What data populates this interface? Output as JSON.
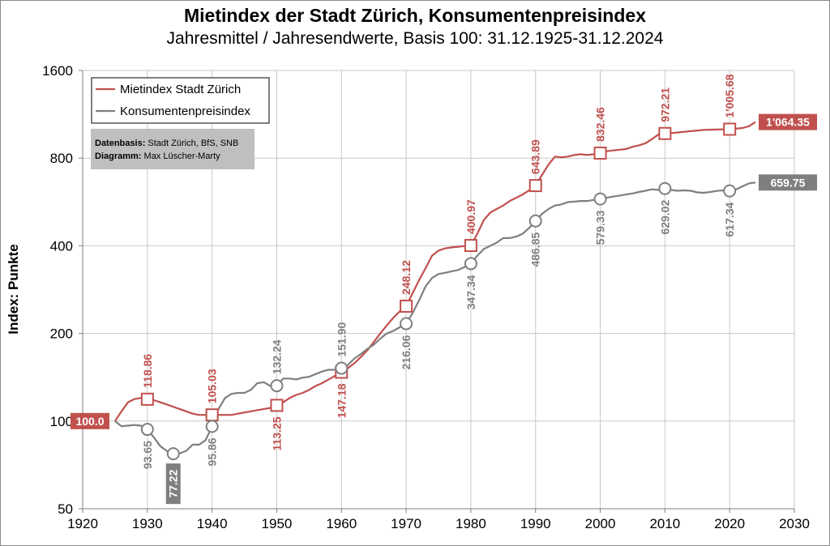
{
  "page": {
    "title": "Mietindex der Stadt Zürich, Konsumentenpreisindex",
    "subtitle": "Jahresmittel / Jahresendwerte, Basis 100: 31.12.1925-31.12.2024"
  },
  "chart_data": {
    "type": "line",
    "ylabel": "Index: Punkte",
    "yscale": "log2",
    "ylim": [
      50,
      1600
    ],
    "xlim": [
      1920,
      2030
    ],
    "y_ticks": [
      "50",
      "100",
      "200",
      "400",
      "800",
      "1600"
    ],
    "x_ticks": [
      "1920",
      "1930",
      "1940",
      "1950",
      "1960",
      "1970",
      "1980",
      "1990",
      "2000",
      "2010",
      "2020",
      "2030"
    ],
    "grid": true,
    "legend_position": "top-left",
    "source_box": {
      "line1_bold": "Datenbasis:",
      "line1_text": " Stadt Zürich, BfS, SNB",
      "line2_bold": "Diagramm:",
      "line2_text": " Max Lüscher-Marty"
    },
    "series": [
      {
        "name": "Mietindex Stadt Zürich",
        "color": "#c0504d",
        "marker": "square",
        "points": [
          [
            1925,
            100
          ],
          [
            1926,
            108
          ],
          [
            1927,
            116
          ],
          [
            1928,
            119
          ],
          [
            1929,
            120
          ],
          [
            1930,
            118.86
          ],
          [
            1931,
            118
          ],
          [
            1932,
            116
          ],
          [
            1933,
            114
          ],
          [
            1934,
            112
          ],
          [
            1935,
            110
          ],
          [
            1936,
            108
          ],
          [
            1937,
            106
          ],
          [
            1938,
            105
          ],
          [
            1939,
            105
          ],
          [
            1940,
            105.03
          ],
          [
            1941,
            105
          ],
          [
            1942,
            105
          ],
          [
            1943,
            105
          ],
          [
            1944,
            106
          ],
          [
            1945,
            107
          ],
          [
            1946,
            108
          ],
          [
            1947,
            109
          ],
          [
            1948,
            110
          ],
          [
            1949,
            111
          ],
          [
            1950,
            113.25
          ],
          [
            1951,
            116
          ],
          [
            1952,
            120
          ],
          [
            1953,
            123
          ],
          [
            1954,
            125
          ],
          [
            1955,
            128
          ],
          [
            1956,
            132
          ],
          [
            1957,
            135
          ],
          [
            1958,
            139
          ],
          [
            1959,
            143
          ],
          [
            1960,
            147.18
          ],
          [
            1961,
            152
          ],
          [
            1962,
            158
          ],
          [
            1963,
            166
          ],
          [
            1964,
            175
          ],
          [
            1965,
            187
          ],
          [
            1966,
            200
          ],
          [
            1967,
            213
          ],
          [
            1968,
            226
          ],
          [
            1969,
            238
          ],
          [
            1970,
            248.12
          ],
          [
            1971,
            275
          ],
          [
            1972,
            305
          ],
          [
            1973,
            335
          ],
          [
            1974,
            370
          ],
          [
            1975,
            385
          ],
          [
            1976,
            392
          ],
          [
            1977,
            395
          ],
          [
            1978,
            397
          ],
          [
            1979,
            399
          ],
          [
            1980,
            400.97
          ],
          [
            1981,
            440
          ],
          [
            1982,
            490
          ],
          [
            1983,
            520
          ],
          [
            1984,
            535
          ],
          [
            1985,
            550
          ],
          [
            1986,
            570
          ],
          [
            1987,
            585
          ],
          [
            1988,
            600
          ],
          [
            1989,
            620
          ],
          [
            1990,
            643.89
          ],
          [
            1991,
            700
          ],
          [
            1992,
            760
          ],
          [
            1993,
            810
          ],
          [
            1994,
            805
          ],
          [
            1995,
            810
          ],
          [
            1996,
            820
          ],
          [
            1997,
            825
          ],
          [
            1998,
            820
          ],
          [
            1999,
            825
          ],
          [
            2000,
            832.46
          ],
          [
            2001,
            845
          ],
          [
            2002,
            850
          ],
          [
            2003,
            855
          ],
          [
            2004,
            860
          ],
          [
            2005,
            875
          ],
          [
            2006,
            885
          ],
          [
            2007,
            900
          ],
          [
            2008,
            930
          ],
          [
            2009,
            965
          ],
          [
            2010,
            972.21
          ],
          [
            2011,
            975
          ],
          [
            2012,
            980
          ],
          [
            2013,
            985
          ],
          [
            2014,
            990
          ],
          [
            2015,
            995
          ],
          [
            2016,
            1000
          ],
          [
            2017,
            1002
          ],
          [
            2018,
            1003
          ],
          [
            2019,
            1004
          ],
          [
            2020,
            1005.68
          ],
          [
            2021,
            1010
          ],
          [
            2022,
            1015
          ],
          [
            2023,
            1030
          ],
          [
            2024,
            1064.35
          ]
        ],
        "labeled": [
          {
            "year": 1930,
            "value": 118.86,
            "text": "118.86",
            "pos": "above"
          },
          {
            "year": 1940,
            "value": 105.03,
            "text": "105.03",
            "pos": "above"
          },
          {
            "year": 1950,
            "value": 113.25,
            "text": "113.25",
            "pos": "below"
          },
          {
            "year": 1960,
            "value": 147.18,
            "text": "147.18",
            "pos": "below"
          },
          {
            "year": 1970,
            "value": 248.12,
            "text": "248.12",
            "pos": "above"
          },
          {
            "year": 1980,
            "value": 400.97,
            "text": "400.97",
            "pos": "above"
          },
          {
            "year": 1990,
            "value": 643.89,
            "text": "643.89",
            "pos": "above"
          },
          {
            "year": 2000,
            "value": 832.46,
            "text": "832.46",
            "pos": "above"
          },
          {
            "year": 2010,
            "value": 972.21,
            "text": "972.21",
            "pos": "above"
          },
          {
            "year": 2020,
            "value": 1005.68,
            "text": "1'005.68",
            "pos": "above"
          }
        ],
        "start_badge": "100.0",
        "end_badge": "1'064.35"
      },
      {
        "name": "Konsumentenpreisindex",
        "color": "#7f7f7f",
        "marker": "circle",
        "points": [
          [
            1925,
            100
          ],
          [
            1926,
            96
          ],
          [
            1927,
            96.5
          ],
          [
            1928,
            97
          ],
          [
            1929,
            96.5
          ],
          [
            1930,
            93.65
          ],
          [
            1931,
            88
          ],
          [
            1932,
            82
          ],
          [
            1933,
            79
          ],
          [
            1934,
            77.22
          ],
          [
            1935,
            77.5
          ],
          [
            1936,
            79
          ],
          [
            1937,
            83
          ],
          [
            1938,
            83
          ],
          [
            1939,
            86
          ],
          [
            1940,
            95.86
          ],
          [
            1941,
            110
          ],
          [
            1942,
            120
          ],
          [
            1943,
            124
          ],
          [
            1944,
            125
          ],
          [
            1945,
            125
          ],
          [
            1946,
            128
          ],
          [
            1947,
            135
          ],
          [
            1948,
            136
          ],
          [
            1949,
            132
          ],
          [
            1950,
            132.24
          ],
          [
            1951,
            140
          ],
          [
            1952,
            140
          ],
          [
            1953,
            139
          ],
          [
            1954,
            141
          ],
          [
            1955,
            142
          ],
          [
            1956,
            145
          ],
          [
            1957,
            148
          ],
          [
            1958,
            150
          ],
          [
            1959,
            150
          ],
          [
            1960,
            151.9
          ],
          [
            1961,
            156
          ],
          [
            1962,
            164
          ],
          [
            1963,
            170
          ],
          [
            1964,
            177
          ],
          [
            1965,
            183
          ],
          [
            1966,
            192
          ],
          [
            1967,
            200
          ],
          [
            1968,
            204
          ],
          [
            1969,
            210
          ],
          [
            1970,
            216.06
          ],
          [
            1971,
            235
          ],
          [
            1972,
            260
          ],
          [
            1973,
            290
          ],
          [
            1974,
            310
          ],
          [
            1975,
            320
          ],
          [
            1976,
            323
          ],
          [
            1977,
            327
          ],
          [
            1978,
            330
          ],
          [
            1979,
            338
          ],
          [
            1980,
            347.34
          ],
          [
            1981,
            370
          ],
          [
            1982,
            390
          ],
          [
            1983,
            400
          ],
          [
            1984,
            410
          ],
          [
            1985,
            425
          ],
          [
            1986,
            425
          ],
          [
            1987,
            430
          ],
          [
            1988,
            440
          ],
          [
            1989,
            460
          ],
          [
            1990,
            486.85
          ],
          [
            1991,
            515
          ],
          [
            1992,
            535
          ],
          [
            1993,
            550
          ],
          [
            1994,
            555
          ],
          [
            1995,
            565
          ],
          [
            1996,
            567
          ],
          [
            1997,
            570
          ],
          [
            1998,
            570
          ],
          [
            1999,
            575
          ],
          [
            2000,
            579.33
          ],
          [
            2001,
            585
          ],
          [
            2002,
            590
          ],
          [
            2003,
            595
          ],
          [
            2004,
            600
          ],
          [
            2005,
            605
          ],
          [
            2006,
            612
          ],
          [
            2007,
            618
          ],
          [
            2008,
            625
          ],
          [
            2009,
            622
          ],
          [
            2010,
            629.02
          ],
          [
            2011,
            622
          ],
          [
            2012,
            618
          ],
          [
            2013,
            620
          ],
          [
            2014,
            618
          ],
          [
            2015,
            610
          ],
          [
            2016,
            608
          ],
          [
            2017,
            612
          ],
          [
            2018,
            617
          ],
          [
            2019,
            620
          ],
          [
            2020,
            617.34
          ],
          [
            2021,
            625
          ],
          [
            2022,
            640
          ],
          [
            2023,
            655
          ],
          [
            2024,
            659.75
          ]
        ],
        "labeled": [
          {
            "year": 1930,
            "value": 93.65,
            "text": "93.65",
            "pos": "below"
          },
          {
            "year": 1934,
            "value": 77.22,
            "text": "77.22",
            "pos": "badge"
          },
          {
            "year": 1940,
            "value": 95.86,
            "text": "95.86",
            "pos": "below"
          },
          {
            "year": 1950,
            "value": 132.24,
            "text": "132.24",
            "pos": "above"
          },
          {
            "year": 1960,
            "value": 151.9,
            "text": "151.90",
            "pos": "above"
          },
          {
            "year": 1970,
            "value": 216.06,
            "text": "216.06",
            "pos": "below"
          },
          {
            "year": 1980,
            "value": 347.34,
            "text": "347.34",
            "pos": "below"
          },
          {
            "year": 1990,
            "value": 486.85,
            "text": "486.85",
            "pos": "below"
          },
          {
            "year": 2000,
            "value": 579.33,
            "text": "579.33",
            "pos": "below"
          },
          {
            "year": 2010,
            "value": 629.02,
            "text": "629.02",
            "pos": "below"
          },
          {
            "year": 2020,
            "value": 617.34,
            "text": "617.34",
            "pos": "below"
          }
        ],
        "end_badge": "659.75"
      }
    ]
  }
}
